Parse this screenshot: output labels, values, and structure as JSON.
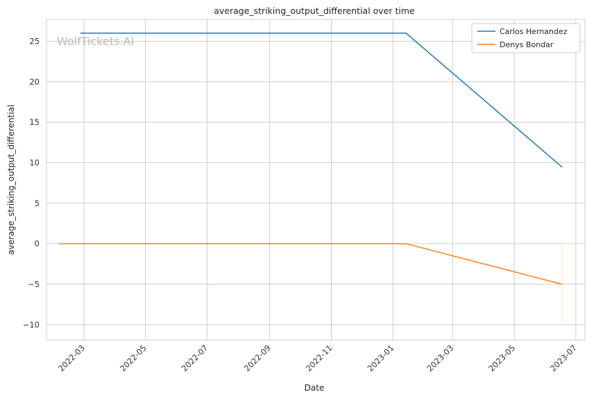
{
  "watermark": "WolfTickets.AI",
  "chart_data": {
    "type": "line",
    "title": "average_striking_output_differential over time",
    "xlabel": "Date",
    "ylabel": "average_striking_output_differential",
    "x_type": "date",
    "xlim": [
      "2022-01-23",
      "2023-07-10"
    ],
    "ylim": [
      -11.9,
      27.7
    ],
    "xticks": [
      "2022-03",
      "2022-05",
      "2022-07",
      "2022-09",
      "2022-11",
      "2023-01",
      "2023-03",
      "2023-05",
      "2023-07"
    ],
    "yticks": [
      -10,
      -5,
      0,
      5,
      10,
      15,
      20,
      25
    ],
    "grid": true,
    "legend_position": "top-right",
    "series": [
      {
        "name": "Carlos Hernandez",
        "color": "#1f77b4",
        "points": [
          {
            "x": "2022-02-26",
            "y": 26.0
          },
          {
            "x": "2023-01-14",
            "y": 26.0
          },
          {
            "x": "2023-06-17",
            "y": 9.5
          }
        ]
      },
      {
        "name": "Denys Bondar",
        "color": "#ff7f0e",
        "points": [
          {
            "x": "2022-02-05",
            "y": 0.0
          },
          {
            "x": "2023-01-14",
            "y": 0.0
          },
          {
            "x": "2023-06-17",
            "y": -5.0
          }
        ]
      }
    ]
  }
}
